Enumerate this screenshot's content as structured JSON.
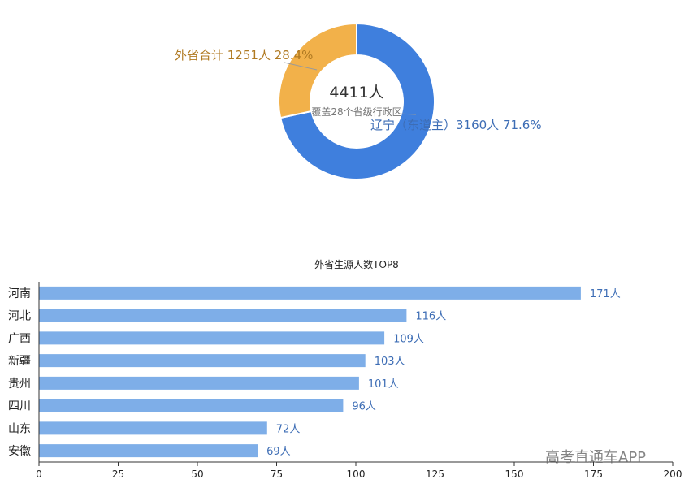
{
  "watermark": "高考直通车APP",
  "chart_data": [
    {
      "type": "pie",
      "style": "donut",
      "center_label": "4411人",
      "center_sublabel": "覆盖28个省级行政区",
      "slices": [
        {
          "label": "辽宁（东道主）3160人 71.6%",
          "value": 3160,
          "percent": 71.6,
          "color": "#3f7fdd"
        },
        {
          "label": "外省合计 1251人 28.4%",
          "value": 1251,
          "percent": 28.4,
          "color": "#f2b14a"
        }
      ]
    },
    {
      "type": "bar",
      "orientation": "horizontal",
      "title": "外省生源人数TOP8",
      "categories": [
        "河南",
        "河北",
        "广西",
        "新疆",
        "贵州",
        "四川",
        "山东",
        "安徽"
      ],
      "values": [
        171,
        116,
        109,
        103,
        101,
        96,
        72,
        69
      ],
      "value_labels": [
        "171人",
        "116人",
        "109人",
        "103人",
        "101人",
        "96人",
        "72人",
        "69人"
      ],
      "xlim": [
        0,
        200
      ],
      "xticks": [
        "0",
        "25",
        "50",
        "75",
        "100",
        "125",
        "150",
        "175",
        "200"
      ],
      "bar_color": "#7eaee8",
      "label_color": "#3d6db5",
      "grid": false
    }
  ]
}
